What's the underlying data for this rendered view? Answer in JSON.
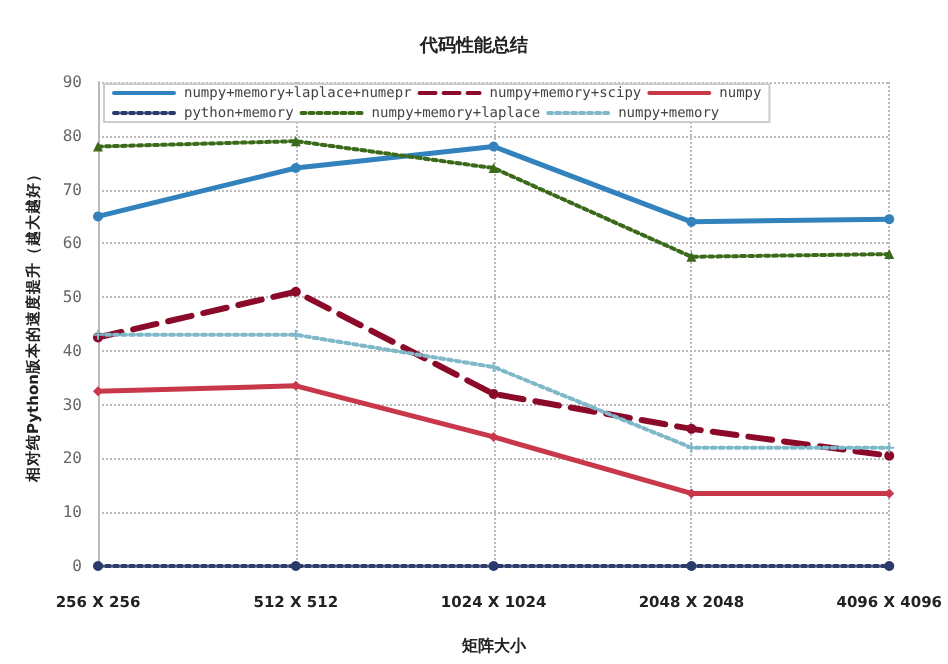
{
  "chart_data": {
    "type": "line",
    "title": "代码性能总结",
    "xlabel": "矩阵大小",
    "ylabel": "相对纯Python版本的速度提升（越大越好）",
    "categories": [
      "256 X 256",
      "512 X 512",
      "1024 X 1024",
      "2048 X 2048",
      "4096 X 4096"
    ],
    "ylim": [
      0,
      90
    ],
    "yticks": [
      0,
      10,
      20,
      30,
      40,
      50,
      60,
      70,
      80,
      90
    ],
    "grid": true,
    "legend": "top",
    "series": [
      {
        "name": "numpy+memory+laplace+numepr",
        "color": "#3182bd",
        "marker": "circle",
        "line_style": "solid",
        "values": [
          65,
          74,
          78,
          64,
          64.5
        ]
      },
      {
        "name": "numpy+memory+scipy",
        "color": "#8b0a2a",
        "marker": "circle",
        "line_style": "dashed",
        "values": [
          42.5,
          51,
          32,
          25.5,
          20.5
        ]
      },
      {
        "name": "numpy",
        "color": "#c8374a",
        "marker": "diamond",
        "line_style": "solid",
        "values": [
          32.5,
          33.5,
          24,
          13.5,
          13.5
        ]
      },
      {
        "name": "python+memory",
        "color": "#2a3a6a",
        "marker": "circle",
        "line_style": "dotted",
        "values": [
          0,
          0,
          0,
          0,
          0
        ]
      },
      {
        "name": "numpy+memory+laplace",
        "color": "#3a6a1a",
        "marker": "triangle",
        "line_style": "dotted",
        "values": [
          78,
          79,
          74,
          57.5,
          58
        ]
      },
      {
        "name": "numpy+memory",
        "color": "#7fb8c8",
        "marker": "cross",
        "line_style": "dotted",
        "values": [
          43,
          43,
          37,
          22,
          22
        ]
      }
    ]
  }
}
